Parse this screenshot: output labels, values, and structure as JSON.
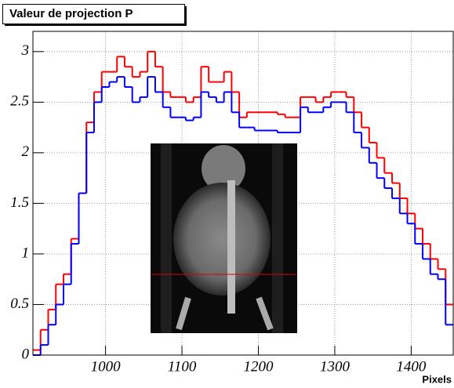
{
  "chart_data": {
    "type": "step",
    "title": "Valeur de projection P",
    "xlabel": "Pixels",
    "grid": true,
    "x": [
      910,
      920,
      930,
      940,
      950,
      960,
      970,
      980,
      990,
      1000,
      1010,
      1020,
      1030,
      1040,
      1050,
      1060,
      1070,
      1080,
      1090,
      1100,
      1110,
      1120,
      1130,
      1140,
      1150,
      1160,
      1170,
      1180,
      1190,
      1200,
      1210,
      1220,
      1230,
      1240,
      1250,
      1260,
      1270,
      1280,
      1290,
      1300,
      1310,
      1320,
      1330,
      1340,
      1350,
      1360,
      1370,
      1380,
      1390,
      1400,
      1410,
      1420,
      1430,
      1440,
      1450
    ],
    "series": [
      {
        "color": "#ff0000",
        "values": [
          0.05,
          0.25,
          0.45,
          0.7,
          0.8,
          1.15,
          1.6,
          2.3,
          2.6,
          2.8,
          2.8,
          2.95,
          2.85,
          2.75,
          2.8,
          3.0,
          2.85,
          2.6,
          2.55,
          2.55,
          2.5,
          2.55,
          2.85,
          2.7,
          2.7,
          2.8,
          2.6,
          2.35,
          2.4,
          2.4,
          2.4,
          2.4,
          2.38,
          2.35,
          2.35,
          2.55,
          2.55,
          2.5,
          2.55,
          2.6,
          2.6,
          2.55,
          2.4,
          2.25,
          2.1,
          1.95,
          1.8,
          1.7,
          1.55,
          1.4,
          1.25,
          1.1,
          0.95,
          0.85,
          0.5
        ]
      },
      {
        "color": "#0000ff",
        "values": [
          0.0,
          0.1,
          0.3,
          0.5,
          0.7,
          1.1,
          1.6,
          2.2,
          2.5,
          2.65,
          2.7,
          2.75,
          2.65,
          2.5,
          2.55,
          2.75,
          2.6,
          2.45,
          2.35,
          2.35,
          2.32,
          2.35,
          2.6,
          2.55,
          2.5,
          2.6,
          2.4,
          2.25,
          2.25,
          2.22,
          2.22,
          2.22,
          2.2,
          2.2,
          2.2,
          2.45,
          2.4,
          2.4,
          2.45,
          2.5,
          2.5,
          2.4,
          2.2,
          2.05,
          1.9,
          1.75,
          1.65,
          1.55,
          1.4,
          1.3,
          1.1,
          0.95,
          0.8,
          0.75,
          0.3
        ]
      }
    ],
    "xlim": [
      905,
      1455
    ],
    "xticks": [
      1000,
      1100,
      1200,
      1300,
      1400
    ],
    "ylim": [
      0,
      3.2
    ],
    "yticks": [
      0,
      0.5,
      1,
      1.5,
      2,
      2.5,
      3
    ]
  }
}
